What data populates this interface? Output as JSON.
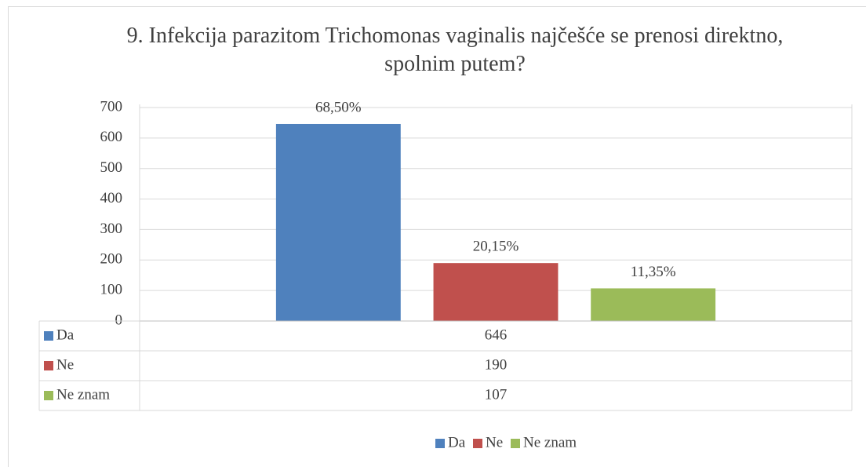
{
  "chart_data": {
    "type": "bar",
    "title": "9. Infekcija parazitom Trichomonas vaginalis najčešće se prenosi direktno, spolnim putem?",
    "categories": [
      null
    ],
    "series": [
      {
        "name": "Da",
        "color": "#4f81bd",
        "values": [
          646
        ],
        "data_labels": [
          "68,50%"
        ]
      },
      {
        "name": "Ne",
        "color": "#c0504d",
        "values": [
          190
        ],
        "data_labels": [
          "20,15%"
        ]
      },
      {
        "name": "Ne znam",
        "color": "#9bbb59",
        "values": [
          107
        ],
        "data_labels": [
          "11,35%"
        ]
      }
    ],
    "ylim": [
      0,
      700
    ],
    "yticks": [
      0,
      100,
      200,
      300,
      400,
      500,
      600,
      700
    ],
    "grid": true,
    "legend": "bottom",
    "data_table": true
  }
}
